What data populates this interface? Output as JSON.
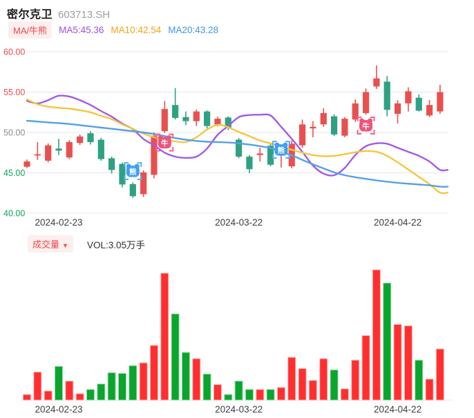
{
  "header": {
    "stock_name": "密尔克卫",
    "stock_code": "603713.SH"
  },
  "legend": {
    "mode_badge": "MA/牛熊",
    "ma5_label": "MA5:45.36",
    "ma10_label": "MA10:42.54",
    "ma20_label": "MA20:43.28"
  },
  "volume_header": {
    "badge": "成交量",
    "dropdown_icon": "▼",
    "vol_label": "VOL:3.05万手"
  },
  "colors": {
    "candle_up": "#e8504f",
    "candle_down": "#2fa183",
    "vol_up": "#ff2f2f",
    "vol_up_edge": "#ffb3b3",
    "vol_down": "#0aa52d",
    "vol_down_edge": "#9bd8a9",
    "ma5_line": "#a259e8",
    "ma10_line": "#f5c63c",
    "ma20_line": "#55a0e8",
    "grid": "#e9ebf4",
    "tick_red": "#f0474e",
    "tick_gray": "#8b8b90",
    "tick_green": "#0ca259",
    "date_label": "#3c3c43",
    "bull_fill": "#ee5479",
    "bull_bracket": "#f4628d",
    "bear_fill": "#3fa0f2",
    "bear_bracket": "#58adf6"
  },
  "chart_data": {
    "type": "candlestick_with_volume",
    "title": "密尔克卫 603713.SH",
    "legend_position": "top-left",
    "grid": true,
    "price_axis": {
      "ticks": [
        {
          "label": "60.00",
          "value": 60,
          "color_key": "tick_red"
        },
        {
          "label": "55.00",
          "value": 55,
          "color_key": "tick_red"
        },
        {
          "label": "50.00",
          "value": 50,
          "color_key": "tick_gray"
        },
        {
          "label": "45.00",
          "value": 45,
          "color_key": "tick_green"
        },
        {
          "label": "40.00",
          "value": 40,
          "color_key": "tick_green"
        }
      ],
      "range": [
        40,
        60
      ]
    },
    "x_axis_labels": [
      {
        "text": "2024-02-23",
        "candle_index": 3
      },
      {
        "text": "2024-03-22",
        "candle_index": 20
      },
      {
        "text": "2024-04-22",
        "candle_index": 35
      }
    ],
    "candle_fields": [
      "open",
      "high",
      "low",
      "close",
      "volume_wan_shou"
    ],
    "candles": [
      [
        45.75,
        46.65,
        45.6,
        46.4,
        0.33
      ],
      [
        47.15,
        48.8,
        46.6,
        47.3,
        1.67
      ],
      [
        46.5,
        48.65,
        46.3,
        48.4,
        0.54
      ],
      [
        48.0,
        49.2,
        47.2,
        47.75,
        2.01
      ],
      [
        46.9,
        49.05,
        46.7,
        48.8,
        1.13
      ],
      [
        48.7,
        49.75,
        48.45,
        49.5,
        0.38
      ],
      [
        49.9,
        50.15,
        48.5,
        48.8,
        0.63
      ],
      [
        49.1,
        49.35,
        46.5,
        46.7,
        0.96
      ],
      [
        46.8,
        47.0,
        44.9,
        45.35,
        1.63
      ],
      [
        46.1,
        46.25,
        43.2,
        43.55,
        1.59
      ],
      [
        43.6,
        43.8,
        41.9,
        42.1,
        2.05
      ],
      [
        42.35,
        45.3,
        42.0,
        45.05,
        2.22
      ],
      [
        44.75,
        50.0,
        44.3,
        49.6,
        3.26
      ],
      [
        50.15,
        53.9,
        49.95,
        52.9,
        7.57
      ],
      [
        53.4,
        55.5,
        51.6,
        51.8,
        5.14
      ],
      [
        51.9,
        52.6,
        50.9,
        51.4,
        2.84
      ],
      [
        51.4,
        52.85,
        50.8,
        52.6,
        2.47
      ],
      [
        52.6,
        52.75,
        50.5,
        50.8,
        1.55
      ],
      [
        51.0,
        51.95,
        50.75,
        51.7,
        0.92
      ],
      [
        51.85,
        52.0,
        50.3,
        50.6,
        0.33
      ],
      [
        49.1,
        49.3,
        46.8,
        47.0,
        1.13
      ],
      [
        47.0,
        47.2,
        44.95,
        45.45,
        0.63
      ],
      [
        47.2,
        48.1,
        46.4,
        47.4,
        0.63
      ],
      [
        48.35,
        48.6,
        45.8,
        46.0,
        0.63
      ],
      [
        47.2,
        47.95,
        45.65,
        47.4,
        0.75
      ],
      [
        45.8,
        49.0,
        45.55,
        48.6,
        2.55
      ],
      [
        48.4,
        51.6,
        48.1,
        51.0,
        1.88
      ],
      [
        50.5,
        51.4,
        49.4,
        50.7,
        1.17
      ],
      [
        51.0,
        53.0,
        50.7,
        52.4,
        2.47
      ],
      [
        52.0,
        52.25,
        49.55,
        49.75,
        1.8
      ],
      [
        49.6,
        51.9,
        49.4,
        51.7,
        0.67
      ],
      [
        51.6,
        54.1,
        51.3,
        53.6,
        2.38
      ],
      [
        52.4,
        55.45,
        52.2,
        55.0,
        3.85
      ],
      [
        55.7,
        58.3,
        55.4,
        56.7,
        7.77
      ],
      [
        56.3,
        57.0,
        52.0,
        52.8,
        6.98
      ],
      [
        52.3,
        54.0,
        51.1,
        53.6,
        4.51
      ],
      [
        53.6,
        55.6,
        52.6,
        55.1,
        4.43
      ],
      [
        54.3,
        54.7,
        52.6,
        52.7,
        2.38
      ],
      [
        52.1,
        54.0,
        51.9,
        53.4,
        1.25
      ],
      [
        52.6,
        55.9,
        52.3,
        55.0,
        3.05
      ]
    ],
    "ma_lines": [
      {
        "name": "MA5",
        "color_key": "ma5_line",
        "values": [
          53.9,
          53.6,
          54.0,
          54.55,
          54.45,
          54.0,
          53.4,
          52.65,
          51.95,
          51.1,
          50.4,
          49.2,
          48.4,
          47.5,
          47.0,
          46.85,
          47.0,
          48.0,
          49.7,
          50.8,
          51.9,
          52.15,
          52.2,
          52.1,
          50.7,
          49.2,
          47.6,
          45.9,
          44.9,
          44.7,
          45.6,
          47.2,
          48.3,
          48.65,
          48.6,
          48.1,
          47.6,
          47.1,
          46.4,
          45.36
        ]
      },
      {
        "name": "MA10",
        "color_key": "ma10_line",
        "values": [
          54.1,
          53.5,
          53.2,
          53.05,
          52.95,
          52.75,
          52.5,
          52.05,
          51.65,
          51.0,
          50.45,
          49.85,
          49.4,
          49.05,
          48.9,
          48.8,
          49.4,
          50.35,
          50.95,
          50.65,
          50.05,
          49.55,
          49.0,
          48.65,
          48.25,
          47.85,
          47.5,
          47.2,
          47.05,
          47.1,
          47.3,
          47.55,
          47.7,
          47.6,
          47.1,
          46.3,
          45.4,
          44.5,
          43.6,
          42.54
        ]
      },
      {
        "name": "MA20",
        "color_key": "ma20_line",
        "values": [
          51.45,
          51.35,
          51.25,
          51.15,
          51.05,
          50.9,
          50.75,
          50.6,
          50.45,
          50.3,
          50.15,
          50.0,
          49.8,
          49.55,
          49.3,
          49.1,
          48.95,
          48.85,
          48.8,
          48.75,
          48.65,
          48.5,
          48.3,
          48.05,
          47.6,
          47.15,
          46.6,
          46.05,
          45.55,
          45.05,
          44.7,
          44.45,
          44.25,
          44.05,
          43.9,
          43.75,
          43.65,
          43.55,
          43.45,
          43.28
        ]
      }
    ],
    "markers": [
      {
        "kind": "bear",
        "glyph": "熊",
        "candle_index": 10,
        "price": 45.2
      },
      {
        "kind": "bull",
        "glyph": "牛",
        "candle_index": 13,
        "price": 48.75
      },
      {
        "kind": "bear",
        "glyph": "熊",
        "candle_index": 24,
        "price": 47.85
      },
      {
        "kind": "bull",
        "glyph": "牛",
        "candle_index": 32,
        "price": 50.85
      }
    ],
    "volume_axis": {
      "unit": "万手",
      "latest_volume": 3.05,
      "max_volume": 7.77
    }
  }
}
